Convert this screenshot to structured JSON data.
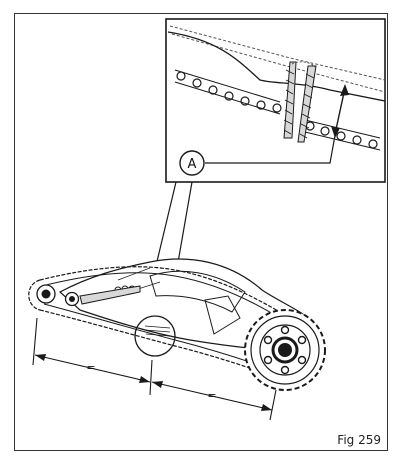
{
  "figure": {
    "callout_label": "A",
    "equal_mark_left": "=",
    "equal_mark_right": "=",
    "caption": "Fig 259"
  },
  "colors": {
    "line": "#1a1a1a",
    "frame": "#333333",
    "shading": "#d8d8d8",
    "background": "#ffffff"
  }
}
